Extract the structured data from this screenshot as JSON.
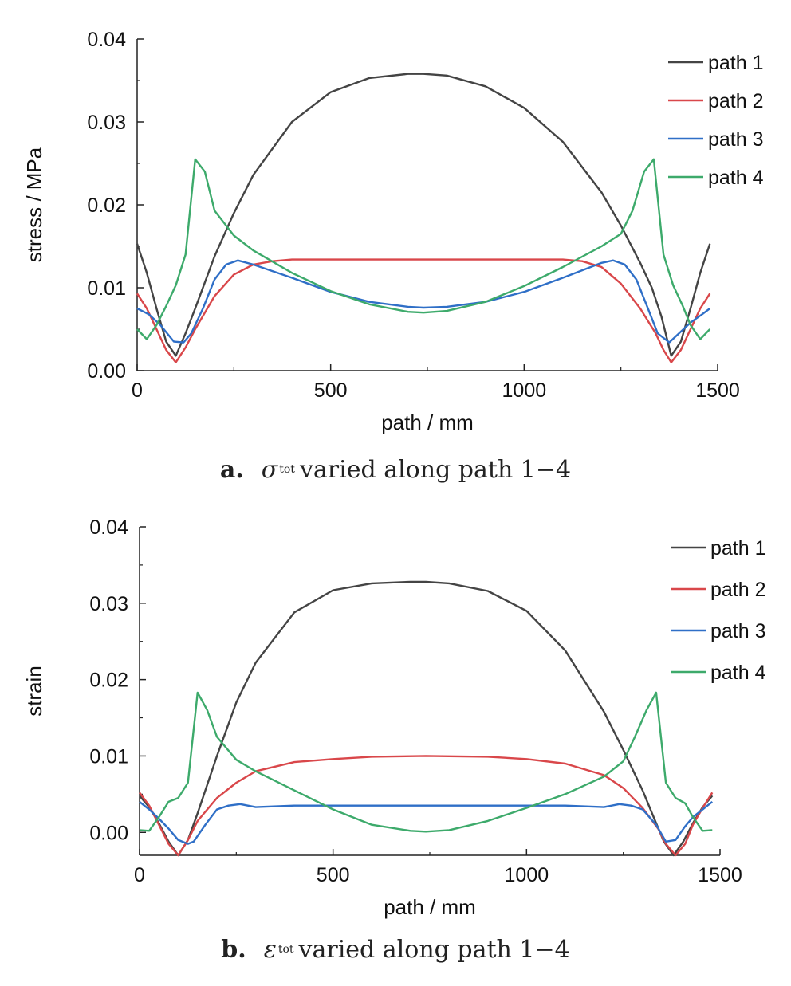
{
  "chart_data": [
    {
      "type": "line",
      "panel_label": "a.",
      "caption_symbol": "σ",
      "caption_sup": "tot",
      "caption_text": "varied along path 1−4",
      "xlabel": "path / mm",
      "ylabel": "stress / MPa",
      "xlim": [
        0,
        1500
      ],
      "ylim": [
        0,
        0.04
      ],
      "xticks": [
        "0",
        "500",
        "1000",
        "1500"
      ],
      "yticks": [
        "0.00",
        "0.01",
        "0.02",
        "0.03",
        "0.04"
      ],
      "grid": false,
      "legend_position": "top-right",
      "series": [
        {
          "name": "path 1",
          "color": "#444444",
          "x": [
            0,
            25,
            50,
            75,
            100,
            125,
            150,
            200,
            250,
            300,
            400,
            500,
            600,
            700,
            740,
            800,
            900,
            1000,
            1100,
            1200,
            1250,
            1300,
            1330,
            1355,
            1380,
            1405,
            1430,
            1455,
            1480
          ],
          "y": [
            0.0153,
            0.0118,
            0.0075,
            0.0035,
            0.0018,
            0.0045,
            0.0075,
            0.0138,
            0.019,
            0.0236,
            0.03,
            0.0336,
            0.0353,
            0.0358,
            0.0358,
            0.0356,
            0.0343,
            0.0317,
            0.0276,
            0.0215,
            0.0175,
            0.013,
            0.01,
            0.0065,
            0.0018,
            0.0035,
            0.0075,
            0.0118,
            0.0153
          ]
        },
        {
          "name": "path 2",
          "color": "#d9474a",
          "x": [
            0,
            25,
            50,
            75,
            100,
            125,
            150,
            200,
            250,
            300,
            350,
            400,
            500,
            600,
            740,
            900,
            1000,
            1100,
            1150,
            1200,
            1250,
            1300,
            1340,
            1360,
            1380,
            1405,
            1430,
            1455,
            1480
          ],
          "y": [
            0.0093,
            0.0075,
            0.005,
            0.0025,
            0.001,
            0.0028,
            0.005,
            0.009,
            0.0116,
            0.0128,
            0.0132,
            0.0134,
            0.0134,
            0.0134,
            0.0134,
            0.0134,
            0.0134,
            0.0134,
            0.0132,
            0.0125,
            0.0105,
            0.0075,
            0.0045,
            0.0025,
            0.001,
            0.0025,
            0.005,
            0.0075,
            0.0093
          ]
        },
        {
          "name": "path 3",
          "color": "#2f6fc7",
          "x": [
            0,
            30,
            60,
            95,
            120,
            140,
            170,
            200,
            230,
            260,
            300,
            400,
            500,
            600,
            700,
            740,
            800,
            900,
            1000,
            1100,
            1200,
            1230,
            1260,
            1290,
            1320,
            1345,
            1375,
            1400,
            1430,
            1460,
            1480
          ],
          "y": [
            0.0075,
            0.0068,
            0.0055,
            0.0035,
            0.0034,
            0.0045,
            0.0075,
            0.011,
            0.0128,
            0.0133,
            0.0128,
            0.0112,
            0.0095,
            0.0083,
            0.0077,
            0.0076,
            0.0077,
            0.0083,
            0.0095,
            0.0112,
            0.013,
            0.0133,
            0.0128,
            0.011,
            0.0075,
            0.0045,
            0.0034,
            0.0045,
            0.0058,
            0.0068,
            0.0075
          ]
        },
        {
          "name": "path 4",
          "color": "#3daa6b",
          "x": [
            0,
            25,
            50,
            75,
            100,
            125,
            150,
            175,
            200,
            250,
            300,
            400,
            500,
            600,
            700,
            740,
            800,
            900,
            1000,
            1100,
            1200,
            1250,
            1280,
            1310,
            1335,
            1360,
            1385,
            1410,
            1430,
            1455,
            1480
          ],
          "y": [
            0.005,
            0.0038,
            0.0055,
            0.0078,
            0.0103,
            0.014,
            0.0255,
            0.024,
            0.0193,
            0.0163,
            0.0145,
            0.0118,
            0.0096,
            0.008,
            0.0071,
            0.007,
            0.0072,
            0.0083,
            0.0102,
            0.0125,
            0.015,
            0.0165,
            0.0193,
            0.024,
            0.0255,
            0.014,
            0.0103,
            0.0078,
            0.0055,
            0.0038,
            0.005
          ]
        }
      ]
    },
    {
      "type": "line",
      "panel_label": "b.",
      "caption_symbol": "ε",
      "caption_sup": "tot",
      "caption_text": "varied along path 1−4",
      "xlabel": "path / mm",
      "ylabel": "strain",
      "xlim": [
        0,
        1500
      ],
      "ylim": [
        -0.003,
        0.04
      ],
      "xticks": [
        "0",
        "500",
        "1000",
        "1500"
      ],
      "yticks": [
        "0.00",
        "0.01",
        "0.02",
        "0.03",
        "0.04"
      ],
      "grid": false,
      "legend_position": "top-right",
      "series": [
        {
          "name": "path 1",
          "color": "#444444",
          "x": [
            0,
            25,
            50,
            75,
            100,
            125,
            150,
            200,
            250,
            300,
            400,
            500,
            600,
            700,
            740,
            800,
            900,
            1000,
            1100,
            1200,
            1250,
            1300,
            1330,
            1355,
            1380,
            1405,
            1430,
            1455,
            1480
          ],
          "y": [
            0.0048,
            0.0033,
            0.0012,
            -0.0012,
            -0.003,
            -0.001,
            0.0025,
            0.01,
            0.017,
            0.0222,
            0.0288,
            0.0317,
            0.0326,
            0.0328,
            0.0328,
            0.0326,
            0.0316,
            0.029,
            0.0238,
            0.0158,
            0.0108,
            0.0055,
            0.0018,
            -0.0012,
            -0.003,
            -0.0012,
            0.0012,
            0.0033,
            0.0048
          ]
        },
        {
          "name": "path 2",
          "color": "#d9474a",
          "x": [
            0,
            25,
            50,
            75,
            100,
            125,
            150,
            200,
            250,
            300,
            400,
            500,
            600,
            740,
            900,
            1000,
            1100,
            1200,
            1250,
            1300,
            1340,
            1360,
            1385,
            1410,
            1430,
            1455,
            1480
          ],
          "y": [
            0.0052,
            0.0035,
            0.001,
            -0.0015,
            -0.003,
            -0.001,
            0.0015,
            0.0045,
            0.0065,
            0.008,
            0.0092,
            0.0096,
            0.0099,
            0.01,
            0.0099,
            0.0096,
            0.009,
            0.0075,
            0.0058,
            0.0032,
            0.0005,
            -0.0015,
            -0.003,
            -0.0015,
            0.001,
            0.0032,
            0.0052
          ]
        },
        {
          "name": "path 3",
          "color": "#2f6fc7",
          "x": [
            0,
            25,
            50,
            75,
            100,
            125,
            140,
            170,
            200,
            230,
            260,
            300,
            400,
            500,
            740,
            900,
            1000,
            1100,
            1200,
            1240,
            1270,
            1300,
            1335,
            1360,
            1385,
            1410,
            1430,
            1455,
            1480
          ],
          "y": [
            0.004,
            0.003,
            0.0018,
            0.0005,
            -0.001,
            -0.0015,
            -0.0012,
            0.001,
            0.003,
            0.0035,
            0.0037,
            0.0033,
            0.0035,
            0.0035,
            0.0035,
            0.0035,
            0.0035,
            0.0035,
            0.0033,
            0.0037,
            0.0035,
            0.003,
            0.001,
            -0.0012,
            -0.001,
            0.0008,
            0.002,
            0.003,
            0.004
          ]
        },
        {
          "name": "path 4",
          "color": "#3daa6b",
          "x": [
            0,
            25,
            50,
            75,
            100,
            125,
            150,
            175,
            200,
            250,
            300,
            400,
            500,
            600,
            700,
            740,
            800,
            900,
            1000,
            1100,
            1200,
            1250,
            1280,
            1310,
            1335,
            1360,
            1385,
            1410,
            1430,
            1455,
            1480
          ],
          "y": [
            0.0003,
            0.0002,
            0.002,
            0.004,
            0.0045,
            0.0065,
            0.0183,
            0.016,
            0.0125,
            0.0095,
            0.008,
            0.0055,
            0.003,
            0.001,
            0.0002,
            0.0001,
            0.0003,
            0.0015,
            0.0032,
            0.005,
            0.0073,
            0.0093,
            0.0125,
            0.016,
            0.0183,
            0.0065,
            0.0045,
            0.0038,
            0.002,
            0.0002,
            0.0003
          ]
        }
      ]
    }
  ]
}
